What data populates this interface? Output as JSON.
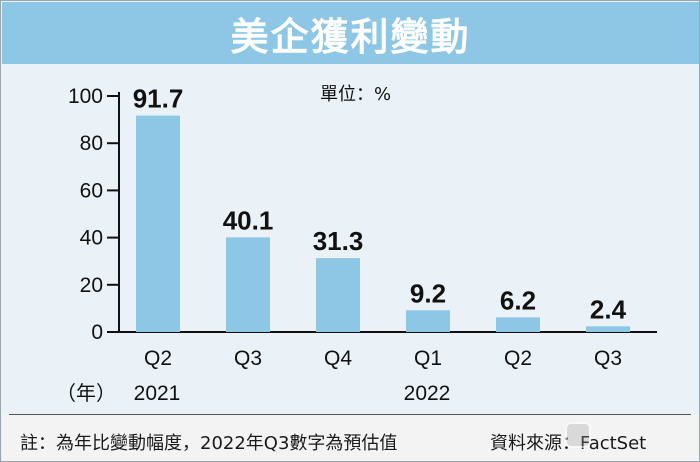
{
  "title": "美企獲利變動",
  "unit_label": "單位：%",
  "year_label_prefix": "（年）",
  "chart_data": {
    "type": "bar",
    "categories": [
      "Q2",
      "Q3",
      "Q4",
      "Q1",
      "Q2",
      "Q3"
    ],
    "group_labels": [
      {
        "label": "2021",
        "category_index": 0
      },
      {
        "label": "2022",
        "category_index": 3
      }
    ],
    "values": [
      91.7,
      40.1,
      31.3,
      9.2,
      6.2,
      2.4
    ],
    "value_labels": [
      "91.7",
      "40.1",
      "31.3",
      "9.2",
      "6.2",
      "2.4"
    ],
    "ylim": [
      0,
      100
    ],
    "yticks": [
      0,
      20,
      40,
      60,
      80,
      100
    ],
    "grid": false,
    "bar_color": "#8dc7e5"
  },
  "footer": {
    "note": "註：為年比變動幅度，2022年Q3數字為預估值",
    "source": "資料來源：FactSet"
  },
  "colors": {
    "title_bar": "#8dc7e5",
    "background": "#eaf2f7",
    "bar": "#8dc7e5"
  }
}
